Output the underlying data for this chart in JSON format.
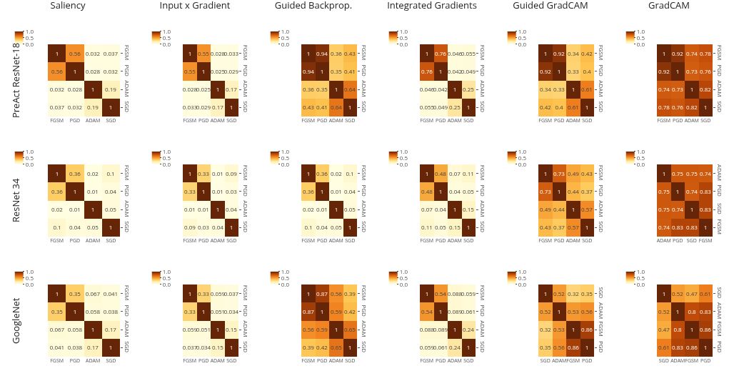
{
  "chart_data": [
    {
      "type": "heatmap",
      "title": "Saliency",
      "ylabel": "PreAct ResNet-18",
      "categories": [
        "FGSM",
        "PGD",
        "ADAM",
        "SGD"
      ],
      "y_categories": [
        "FGSM",
        "PGD",
        "ADAM",
        "SGD"
      ],
      "cells": [
        [
          1,
          0.56,
          0.032,
          0.037
        ],
        [
          0.56,
          1,
          0.028,
          0.032
        ],
        [
          0.032,
          0.028,
          1,
          0.19
        ],
        [
          0.037,
          0.032,
          0.19,
          1
        ]
      ],
      "clim": [
        0,
        1
      ],
      "cticks": [
        {
          "value": 0,
          "label": "0.0"
        },
        {
          "value": 0.5,
          "label": "0.5"
        },
        {
          "value": 1,
          "label": "1.0"
        }
      ],
      "data_labels": true
    },
    {
      "type": "heatmap",
      "title": "Input x Gradient",
      "categories": [
        "FGSM",
        "PGD",
        "ADAM",
        "SGD"
      ],
      "y_categories": [
        "FGSM",
        "PGD",
        "ADAM",
        "SGD"
      ],
      "cells": [
        [
          1,
          0.55,
          0.028,
          0.033
        ],
        [
          0.55,
          1,
          0.025,
          0.029
        ],
        [
          0.028,
          0.025,
          1,
          0.17
        ],
        [
          0.033,
          0.029,
          0.17,
          1
        ]
      ],
      "clim": [
        0,
        1
      ],
      "cticks": [
        {
          "value": 0,
          "label": "0.0"
        },
        {
          "value": 0.5,
          "label": "0.5"
        },
        {
          "value": 1,
          "label": "1.0"
        }
      ],
      "data_labels": true
    },
    {
      "type": "heatmap",
      "title": "Guided Backprop.",
      "categories": [
        "FGSM",
        "PGD",
        "ADAM",
        "SGD"
      ],
      "y_categories": [
        "FGSM",
        "PGD",
        "ADAM",
        "SGD"
      ],
      "cells": [
        [
          1,
          0.94,
          0.36,
          0.43
        ],
        [
          0.94,
          1,
          0.35,
          0.41
        ],
        [
          0.36,
          0.35,
          1,
          0.64
        ],
        [
          0.43,
          0.41,
          0.64,
          1
        ]
      ],
      "clim": [
        0,
        1
      ],
      "cticks": [
        {
          "value": 0,
          "label": "0.0"
        },
        {
          "value": 0.5,
          "label": "0.5"
        },
        {
          "value": 1,
          "label": "1.0"
        }
      ],
      "data_labels": true
    },
    {
      "type": "heatmap",
      "title": "Integrated Gradients",
      "categories": [
        "FGSM",
        "PGD",
        "ADAM",
        "SGD"
      ],
      "y_categories": [
        "FGSM",
        "PGD",
        "ADAM",
        "SGD"
      ],
      "cells": [
        [
          1,
          0.76,
          0.046,
          0.055
        ],
        [
          0.76,
          1,
          0.042,
          0.049
        ],
        [
          0.046,
          0.042,
          1,
          0.25
        ],
        [
          0.055,
          0.049,
          0.25,
          1
        ]
      ],
      "clim": [
        0,
        1
      ],
      "cticks": [
        {
          "value": 0,
          "label": "0.0"
        },
        {
          "value": 0.5,
          "label": "0.5"
        },
        {
          "value": 1,
          "label": "1.0"
        }
      ],
      "data_labels": true
    },
    {
      "type": "heatmap",
      "title": "Guided GradCAM",
      "categories": [
        "FGSM",
        "PGD",
        "ADAM",
        "SGD"
      ],
      "y_categories": [
        "FGSM",
        "PGD",
        "ADAM",
        "SGD"
      ],
      "cells": [
        [
          1,
          0.92,
          0.34,
          0.42
        ],
        [
          0.92,
          1,
          0.33,
          0.4
        ],
        [
          0.34,
          0.33,
          1,
          0.61
        ],
        [
          0.42,
          0.4,
          0.61,
          1
        ]
      ],
      "clim": [
        0,
        1
      ],
      "cticks": [
        {
          "value": 0,
          "label": "0.0"
        },
        {
          "value": 0.5,
          "label": "0.5"
        },
        {
          "value": 1,
          "label": "1.0"
        }
      ],
      "data_labels": true
    },
    {
      "type": "heatmap",
      "title": "GradCAM",
      "categories": [
        "FGSM",
        "PGD",
        "ADAM",
        "SGD"
      ],
      "y_categories": [
        "FGSM",
        "PGD",
        "ADAM",
        "SGD"
      ],
      "cells": [
        [
          1,
          0.92,
          0.74,
          0.78
        ],
        [
          0.92,
          1,
          0.73,
          0.76
        ],
        [
          0.74,
          0.73,
          1,
          0.82
        ],
        [
          0.78,
          0.76,
          0.82,
          1
        ]
      ],
      "clim": [
        0,
        1
      ],
      "cticks": [
        {
          "value": 0,
          "label": "0.0"
        },
        {
          "value": 0.5,
          "label": "0.5"
        },
        {
          "value": 1,
          "label": "1.0"
        }
      ],
      "data_labels": true
    },
    {
      "type": "heatmap",
      "ylabel": "ResNet 34",
      "categories": [
        "FGSM",
        "PGD",
        "ADAM",
        "SGD"
      ],
      "y_categories": [
        "FGSM",
        "PGD",
        "ADAM",
        "SGD"
      ],
      "cells": [
        [
          1,
          0.36,
          0.02,
          0.1
        ],
        [
          0.36,
          1,
          0.01,
          0.04
        ],
        [
          0.02,
          0.01,
          1,
          0.05
        ],
        [
          0.1,
          0.04,
          0.05,
          1
        ]
      ],
      "clim": [
        0,
        1
      ],
      "cticks": [
        {
          "value": 0,
          "label": "0.0"
        },
        {
          "value": 0.5,
          "label": "0.5"
        },
        {
          "value": 1,
          "label": "1.0"
        }
      ],
      "data_labels": true
    },
    {
      "type": "heatmap",
      "categories": [
        "FGSM",
        "PGD",
        "ADAM",
        "SGD"
      ],
      "y_categories": [
        "FGSM",
        "PGD",
        "ADAM",
        "SGD"
      ],
      "cells": [
        [
          1,
          0.33,
          0.01,
          0.09
        ],
        [
          0.33,
          1,
          0.01,
          0.03
        ],
        [
          0.01,
          0.01,
          1,
          0.04
        ],
        [
          0.09,
          0.03,
          0.04,
          1
        ]
      ],
      "clim": [
        0,
        1
      ],
      "cticks": [
        {
          "value": 0,
          "label": "0.0"
        },
        {
          "value": 0.5,
          "label": "0.5"
        },
        {
          "value": 1,
          "label": "1.0"
        }
      ],
      "data_labels": true
    },
    {
      "type": "heatmap",
      "categories": [
        "FGSM",
        "PGD",
        "ADAM",
        "SGD"
      ],
      "y_categories": [
        "FGSM",
        "PGD",
        "ADAM",
        "SGD"
      ],
      "cells": [
        [
          1,
          0.36,
          0.02,
          0.1
        ],
        [
          0.36,
          1,
          0.01,
          0.04
        ],
        [
          0.02,
          0.01,
          1,
          0.05
        ],
        [
          0.1,
          0.04,
          0.05,
          1
        ]
      ],
      "clim": [
        0,
        1
      ],
      "cticks": [
        {
          "value": 0,
          "label": "0.0"
        },
        {
          "value": 0.5,
          "label": "0.5"
        },
        {
          "value": 1,
          "label": "1.0"
        }
      ],
      "data_labels": true
    },
    {
      "type": "heatmap",
      "categories": [
        "FGSM",
        "PGD",
        "ADAM",
        "SGD"
      ],
      "y_categories": [
        "FGSM",
        "PGD",
        "ADAM",
        "SGD"
      ],
      "cells": [
        [
          1,
          0.48,
          0.07,
          0.11
        ],
        [
          0.48,
          1,
          0.04,
          0.05
        ],
        [
          0.07,
          0.04,
          1,
          0.15
        ],
        [
          0.11,
          0.05,
          0.15,
          1
        ]
      ],
      "clim": [
        0,
        1
      ],
      "cticks": [
        {
          "value": 0,
          "label": "0.0"
        },
        {
          "value": 0.5,
          "label": "0.5"
        },
        {
          "value": 1,
          "label": "1.0"
        }
      ],
      "data_labels": true
    },
    {
      "type": "heatmap",
      "categories": [
        "FGSM",
        "PGD",
        "ADAM",
        "SGD"
      ],
      "y_categories": [
        "FGSM",
        "PGD",
        "ADAM",
        "SGD"
      ],
      "cells": [
        [
          1,
          0.73,
          0.49,
          0.43
        ],
        [
          0.73,
          1,
          0.44,
          0.37
        ],
        [
          0.49,
          0.44,
          1,
          0.57
        ],
        [
          0.43,
          0.37,
          0.57,
          1
        ]
      ],
      "clim": [
        0,
        1
      ],
      "cticks": [
        {
          "value": 0,
          "label": "0.0"
        },
        {
          "value": 0.5,
          "label": "0.5"
        },
        {
          "value": 1,
          "label": "1.0"
        }
      ],
      "data_labels": true
    },
    {
      "type": "heatmap",
      "categories": [
        "ADAM",
        "PGD",
        "SGD",
        "FGSM"
      ],
      "y_categories": [
        "ADAM",
        "PGD",
        "SGD",
        "FGSM"
      ],
      "cells": [
        [
          1,
          0.75,
          0.75,
          0.74
        ],
        [
          0.75,
          1,
          0.74,
          0.83
        ],
        [
          0.75,
          0.74,
          1,
          0.83
        ],
        [
          0.74,
          0.83,
          0.83,
          1
        ]
      ],
      "clim": [
        0,
        1
      ],
      "cticks": [
        {
          "value": 0,
          "label": "0.0"
        },
        {
          "value": 0.5,
          "label": "0.5"
        },
        {
          "value": 1,
          "label": "1.0"
        }
      ],
      "data_labels": true
    },
    {
      "type": "heatmap",
      "ylabel": "GoogleNet",
      "categories": [
        "FGSM",
        "PGD",
        "ADAM",
        "SGD"
      ],
      "y_categories": [
        "FGSM",
        "PGD",
        "ADAM",
        "SGD"
      ],
      "cells": [
        [
          1,
          0.35,
          0.067,
          0.041
        ],
        [
          0.35,
          1,
          0.058,
          0.038
        ],
        [
          0.067,
          0.058,
          1,
          0.17
        ],
        [
          0.041,
          0.038,
          0.17,
          1
        ]
      ],
      "clim": [
        0,
        1
      ],
      "cticks": [
        {
          "value": 0,
          "label": "0.0"
        },
        {
          "value": 0.5,
          "label": "0.5"
        },
        {
          "value": 1,
          "label": "1.0"
        }
      ],
      "data_labels": true
    },
    {
      "type": "heatmap",
      "categories": [
        "FGSM",
        "PGD",
        "ADAM",
        "SGD"
      ],
      "y_categories": [
        "FGSM",
        "PGD",
        "ADAM",
        "SGD"
      ],
      "cells": [
        [
          1,
          0.33,
          0.059,
          0.037
        ],
        [
          0.33,
          1,
          0.051,
          0.034
        ],
        [
          0.059,
          0.051,
          1,
          0.15
        ],
        [
          0.037,
          0.034,
          0.15,
          1
        ]
      ],
      "clim": [
        0,
        1
      ],
      "cticks": [
        {
          "value": 0,
          "label": "0.0"
        },
        {
          "value": 0.5,
          "label": "0.5"
        },
        {
          "value": 1,
          "label": "1.0"
        }
      ],
      "data_labels": true
    },
    {
      "type": "heatmap",
      "categories": [
        "FGSM",
        "PGD",
        "ADAM",
        "SGD"
      ],
      "y_categories": [
        "FGSM",
        "PGD",
        "ADAM",
        "SGD"
      ],
      "cells": [
        [
          1,
          0.87,
          0.56,
          0.39
        ],
        [
          0.87,
          1,
          0.59,
          0.42
        ],
        [
          0.56,
          0.59,
          1,
          0.65
        ],
        [
          0.39,
          0.42,
          0.65,
          1
        ]
      ],
      "clim": [
        0,
        1
      ],
      "cticks": [
        {
          "value": 0,
          "label": "0.0"
        },
        {
          "value": 0.5,
          "label": "0.5"
        },
        {
          "value": 1,
          "label": "1.0"
        }
      ],
      "data_labels": true
    },
    {
      "type": "heatmap",
      "categories": [
        "FGSM",
        "PGD",
        "ADAM",
        "SGD"
      ],
      "y_categories": [
        "FGSM",
        "PGD",
        "ADAM",
        "SGD"
      ],
      "cells": [
        [
          1,
          0.54,
          0.088,
          0.059
        ],
        [
          0.54,
          1,
          0.089,
          0.061
        ],
        [
          0.088,
          0.089,
          1,
          0.24
        ],
        [
          0.059,
          0.061,
          0.24,
          1
        ]
      ],
      "clim": [
        0,
        1
      ],
      "cticks": [
        {
          "value": 0,
          "label": "0.0"
        },
        {
          "value": 0.5,
          "label": "0.5"
        },
        {
          "value": 1,
          "label": "1.0"
        }
      ],
      "data_labels": true
    },
    {
      "type": "heatmap",
      "categories": [
        "SGD",
        "ADAM",
        "FGSM",
        "PGD"
      ],
      "y_categories": [
        "SGD",
        "ADAM",
        "FGSM",
        "PGD"
      ],
      "cells": [
        [
          1,
          0.52,
          0.32,
          0.35
        ],
        [
          0.52,
          1,
          0.53,
          0.56
        ],
        [
          0.32,
          0.53,
          1,
          0.86
        ],
        [
          0.35,
          0.56,
          0.86,
          1
        ]
      ],
      "clim": [
        0,
        1
      ],
      "cticks": [
        {
          "value": 0,
          "label": "0.0"
        },
        {
          "value": 0.5,
          "label": "0.5"
        },
        {
          "value": 1,
          "label": "1.0"
        }
      ],
      "data_labels": true
    },
    {
      "type": "heatmap",
      "categories": [
        "SGD",
        "ADAM",
        "FGSM",
        "PGD"
      ],
      "y_categories": [
        "SGD",
        "ADAM",
        "FGSM",
        "PGD"
      ],
      "cells": [
        [
          1,
          0.52,
          0.47,
          0.61
        ],
        [
          0.52,
          1,
          0.8,
          0.83
        ],
        [
          0.47,
          0.8,
          1,
          0.86
        ],
        [
          0.61,
          0.83,
          0.86,
          1
        ]
      ],
      "clim": [
        0,
        1
      ],
      "cticks": [
        {
          "value": 0,
          "label": "0.0"
        },
        {
          "value": 0.5,
          "label": "0.5"
        },
        {
          "value": 1,
          "label": "1.0"
        }
      ],
      "data_labels": true
    }
  ]
}
